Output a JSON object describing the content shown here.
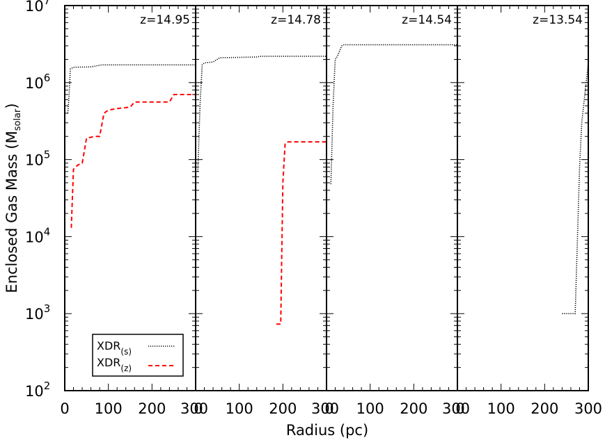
{
  "chart_data": {
    "type": "line",
    "ylabel": "Enclosed Gas Mass (M",
    "ylabel_sub": "solar",
    "ylabel_close": ")",
    "xlabel": "Radius (pc)",
    "yscale": "log",
    "ylim": [
      100,
      10000000
    ],
    "xlim": [
      0,
      300
    ],
    "y_ticks": [
      {
        "value": 100,
        "base": "10",
        "exp": "2"
      },
      {
        "value": 1000,
        "base": "10",
        "exp": "3"
      },
      {
        "value": 10000,
        "base": "10",
        "exp": "4"
      },
      {
        "value": 100000,
        "base": "10",
        "exp": "5"
      },
      {
        "value": 1000000,
        "base": "10",
        "exp": "6"
      },
      {
        "value": 10000000,
        "base": "10",
        "exp": "7"
      }
    ],
    "x_ticks": [
      "0",
      "100",
      "200",
      "300"
    ],
    "legend": {
      "position": "bottom-left",
      "entries": [
        {
          "base": "XDR",
          "sub": "(s)",
          "style": "dotted",
          "color": "#000000"
        },
        {
          "base": "XDR",
          "sub": "(z)",
          "style": "dashed",
          "color": "#ff0000"
        }
      ]
    },
    "panels": [
      {
        "label": "z=14.95",
        "series": [
          {
            "key": "s",
            "style": "dotted",
            "color": "#000000",
            "points": [
              [
                7,
                400000
              ],
              [
                10,
                700000
              ],
              [
                13,
                1500000
              ],
              [
                20,
                1580000
              ],
              [
                60,
                1600000
              ],
              [
                85,
                1700000
              ],
              [
                300,
                1700000
              ]
            ]
          },
          {
            "key": "z",
            "style": "dashed",
            "color": "#ff0000",
            "points": [
              [
                15,
                13000
              ],
              [
                20,
                75000
              ],
              [
                30,
                85000
              ],
              [
                40,
                90000
              ],
              [
                50,
                190000
              ],
              [
                60,
                195000
              ],
              [
                70,
                200000
              ],
              [
                80,
                200000
              ],
              [
                90,
                400000
              ],
              [
                100,
                440000
              ],
              [
                120,
                460000
              ],
              [
                150,
                480000
              ],
              [
                160,
                560000
              ],
              [
                240,
                560000
              ],
              [
                250,
                700000
              ],
              [
                300,
                700000
              ]
            ]
          }
        ]
      },
      {
        "label": "z=14.78",
        "series": [
          {
            "key": "s",
            "style": "dotted",
            "color": "#000000",
            "points": [
              [
                5,
                70000
              ],
              [
                10,
                500000
              ],
              [
                15,
                1700000
              ],
              [
                20,
                1800000
              ],
              [
                40,
                1850000
              ],
              [
                55,
                2100000
              ],
              [
                140,
                2150000
              ],
              [
                150,
                2200000
              ],
              [
                300,
                2200000
              ]
            ]
          },
          {
            "key": "z",
            "style": "dashed",
            "color": "#ff0000",
            "points": [
              [
                185,
                730
              ],
              [
                195,
                730
              ],
              [
                200,
                50000
              ],
              [
                205,
                160000
              ],
              [
                210,
                170000
              ],
              [
                300,
                170000
              ]
            ]
          }
        ]
      },
      {
        "label": "z=14.54",
        "series": [
          {
            "key": "s",
            "style": "dotted",
            "color": "#000000",
            "points": [
              [
                10,
                48000
              ],
              [
                15,
                500000
              ],
              [
                20,
                2000000
              ],
              [
                25,
                2200000
              ],
              [
                35,
                3000000
              ],
              [
                40,
                3100000
              ],
              [
                300,
                3100000
              ]
            ]
          }
        ]
      },
      {
        "label": "z=13.54",
        "series": [
          {
            "key": "s",
            "style": "dotted",
            "color": "#000000",
            "points": [
              [
                240,
                1000
              ],
              [
                270,
                1000
              ],
              [
                280,
                80000
              ],
              [
                285,
                300000
              ],
              [
                295,
                1000000
              ],
              [
                300,
                1800000
              ]
            ]
          }
        ]
      }
    ]
  }
}
